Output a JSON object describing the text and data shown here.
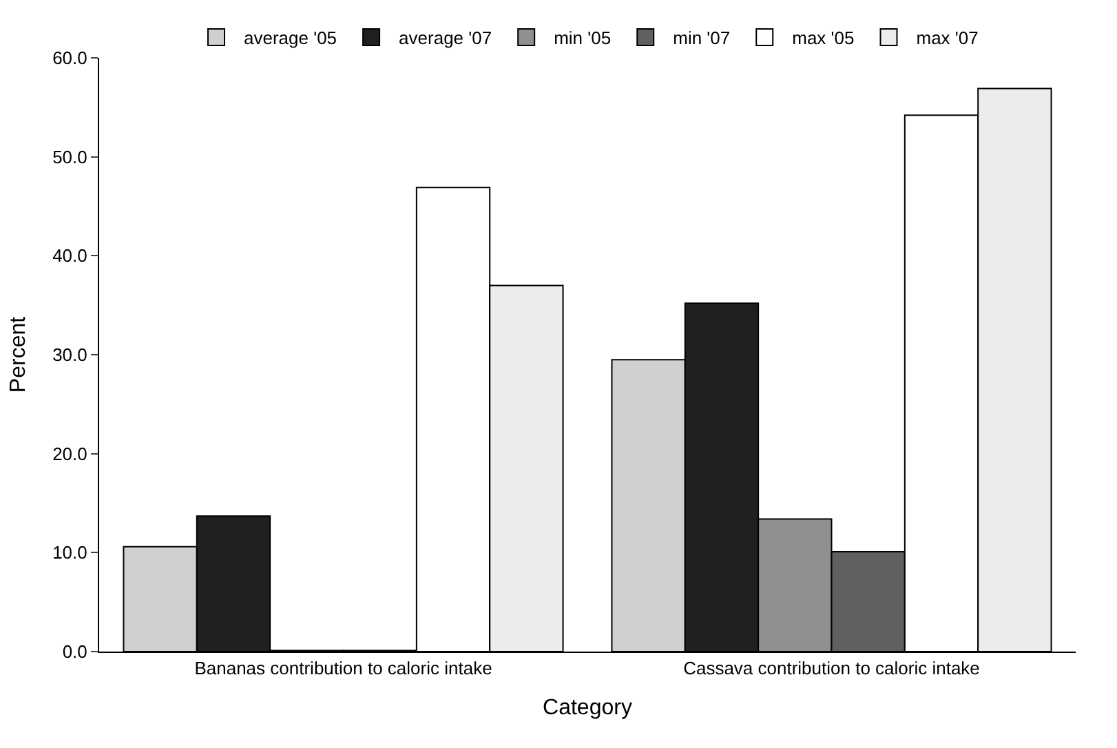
{
  "chart_data": {
    "type": "bar",
    "xlabel": "Category",
    "ylabel": "Percent",
    "categories": [
      "Bananas contribution to caloric intake",
      "Cassava contribution to caloric intake"
    ],
    "series": [
      {
        "name": "average '05",
        "color": "#d0d0d0",
        "values": [
          10.6,
          29.5
        ]
      },
      {
        "name": "average '07",
        "color": "#202020",
        "values": [
          13.7,
          35.2
        ]
      },
      {
        "name": "min '05",
        "color": "#909090",
        "values": [
          0.1,
          13.4
        ]
      },
      {
        "name": "min '07",
        "color": "#606060",
        "values": [
          0.1,
          10.1
        ]
      },
      {
        "name": "max '05",
        "color": "#ffffff",
        "values": [
          46.9,
          54.2
        ]
      },
      {
        "name": "max '07",
        "color": "#ececec",
        "values": [
          37.0,
          56.9
        ]
      }
    ],
    "ylim": [
      0,
      60
    ],
    "yticks": [
      {
        "value": 0,
        "label": "0.0"
      },
      {
        "value": 10,
        "label": "10.0"
      },
      {
        "value": 20,
        "label": "20.0"
      },
      {
        "value": 30,
        "label": "30.0"
      },
      {
        "value": 40,
        "label": "40.0"
      },
      {
        "value": 50,
        "label": "50.0"
      },
      {
        "value": 60,
        "label": "60.0"
      }
    ],
    "legend": "top"
  }
}
